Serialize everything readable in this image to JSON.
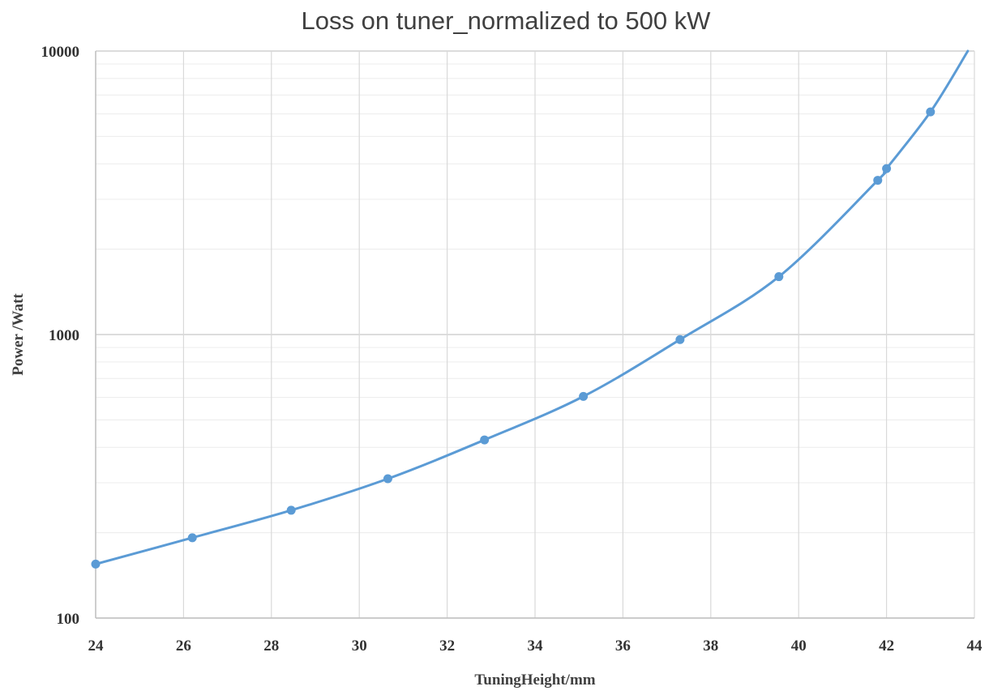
{
  "chart_data": {
    "type": "scatter",
    "title": "Loss on tuner_normalized to 500 kW",
    "xlabel": "TuningHeight/mm",
    "ylabel": "Power /Watt",
    "xlim": [
      24,
      44
    ],
    "ylim": [
      100,
      10000
    ],
    "y_scale": "log",
    "x_ticks": [
      "24",
      "26",
      "28",
      "30",
      "32",
      "34",
      "36",
      "38",
      "40",
      "42",
      "44"
    ],
    "y_ticks": [
      "100",
      "1000",
      "10000"
    ],
    "grid": true,
    "legend": "none",
    "series": [
      {
        "color": "#5B9BD5",
        "smooth_line": true,
        "points": [
          {
            "x": 24.0,
            "y": 155
          },
          {
            "x": 26.2,
            "y": 192
          },
          {
            "x": 28.45,
            "y": 240
          },
          {
            "x": 30.65,
            "y": 310
          },
          {
            "x": 32.85,
            "y": 425
          },
          {
            "x": 35.1,
            "y": 605
          },
          {
            "x": 37.3,
            "y": 960
          },
          {
            "x": 39.55,
            "y": 1600
          },
          {
            "x": 41.8,
            "y": 3500
          },
          {
            "x": 42.0,
            "y": 3850
          },
          {
            "x": 43.0,
            "y": 6100
          }
        ],
        "line_end": {
          "x": 43.85,
          "y": 10000
        }
      }
    ]
  }
}
